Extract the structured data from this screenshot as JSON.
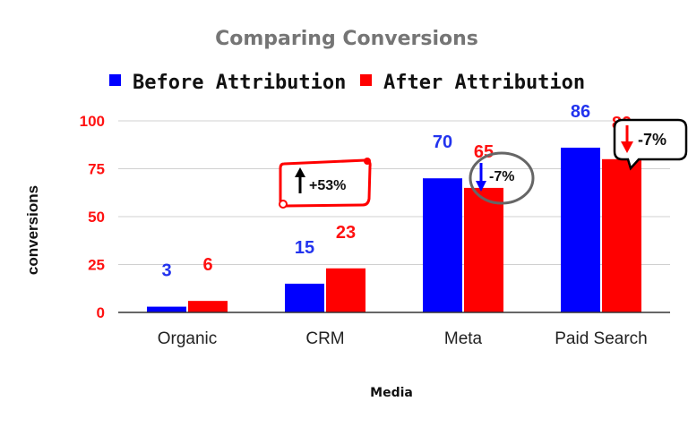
{
  "chart_data": {
    "type": "bar",
    "title": "Comparing Conversions",
    "xlabel": "Media",
    "ylabel": "conversions",
    "categories": [
      "Organic",
      "CRM",
      "Meta",
      "Paid Search"
    ],
    "series": [
      {
        "name": "Before Attribution",
        "color": "#0000ff",
        "values": [
          3,
          15,
          70,
          86
        ]
      },
      {
        "name": "After Attribution",
        "color": "#ff0000",
        "values": [
          6,
          23,
          65,
          80
        ]
      }
    ],
    "ylim": [
      0,
      100
    ],
    "yticks": [
      0,
      25,
      50,
      75,
      100
    ],
    "grid": true,
    "legend_position": "top",
    "annotations": [
      {
        "text": "+53%",
        "category": "CRM",
        "shape": "scroll",
        "arrow": "up",
        "arrow_color": "#000000"
      },
      {
        "text": "-7%",
        "category": "Meta",
        "shape": "ellipse",
        "arrow": "down",
        "arrow_color": "#0000ff"
      },
      {
        "text": "-7%",
        "category": "Paid Search",
        "shape": "speech-bubble",
        "arrow": "down",
        "arrow_color": "#ff0000"
      }
    ]
  }
}
